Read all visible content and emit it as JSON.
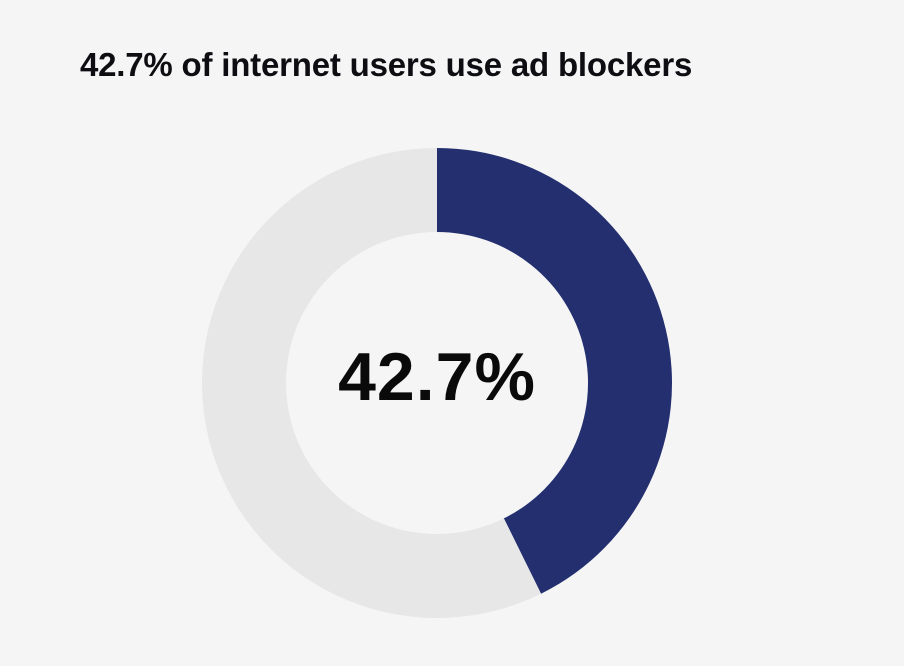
{
  "chart_data": {
    "type": "pie",
    "variant": "donut",
    "title": "42.7% of internet users use ad blockers",
    "center_label": "42.7%",
    "slices": [
      {
        "value": 42.7,
        "color": "#232f6f"
      },
      {
        "value": 57.3,
        "color": "#e7e7e8"
      }
    ],
    "start": "top",
    "direction": "clockwise",
    "legend": "none"
  }
}
